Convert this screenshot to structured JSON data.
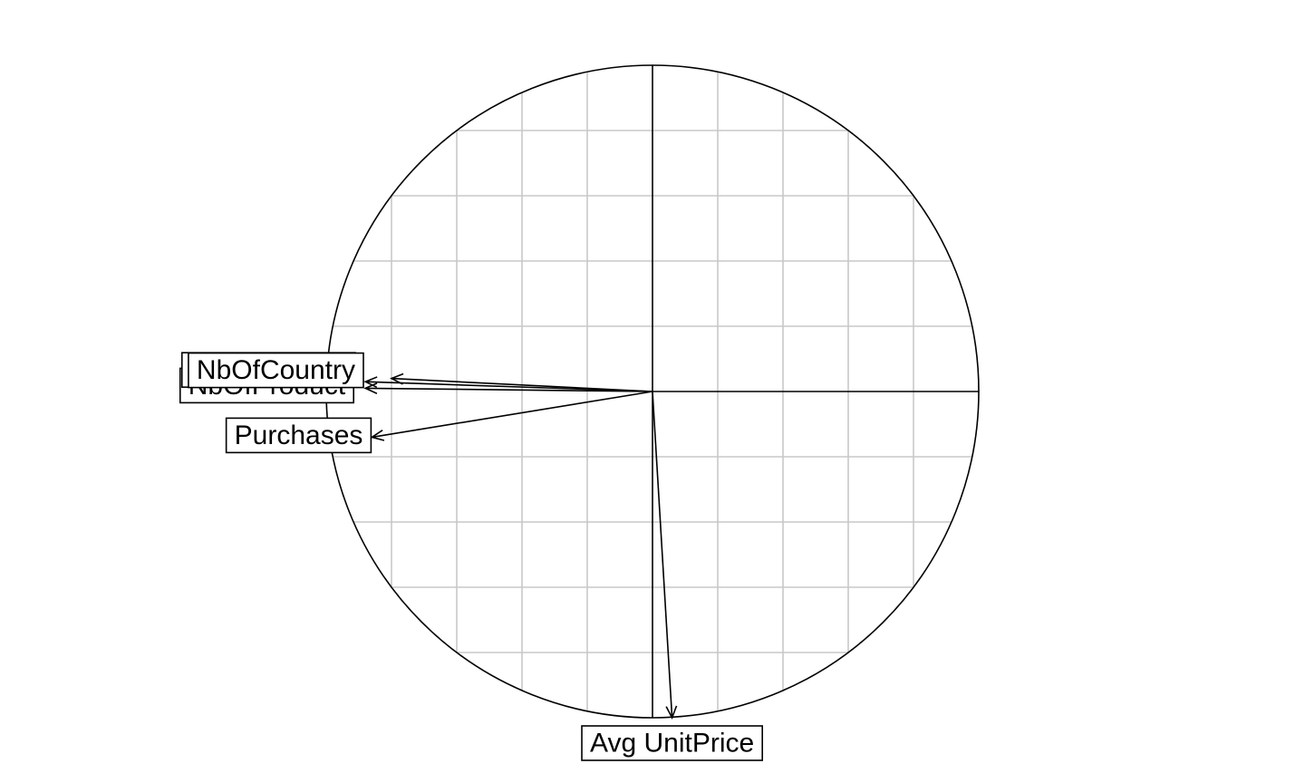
{
  "chart_data": {
    "type": "scatter",
    "subtype": "correlation-circle",
    "title": "",
    "xlabel": "",
    "ylabel": "",
    "xlim": [
      -1,
      1
    ],
    "ylim": [
      -1,
      1
    ],
    "grid": true,
    "grid_step": 0.2,
    "variables": [
      {
        "name": "NbOfProduct",
        "x": -0.88,
        "y": 0.01
      },
      {
        "name": "NbOfProduct",
        "x": -0.88,
        "y": 0.03
      },
      {
        "name": "NbOfCountry",
        "x": -0.8,
        "y": 0.04
      },
      {
        "name": "Purchases",
        "x": -0.86,
        "y": -0.14
      },
      {
        "name": "Avg UnitPrice",
        "x": 0.06,
        "y": -1.0
      }
    ]
  },
  "colors": {
    "axis": "#000000",
    "grid": "#c8c8c8",
    "arrow": "#000000",
    "label_bg": "#ffffff"
  }
}
